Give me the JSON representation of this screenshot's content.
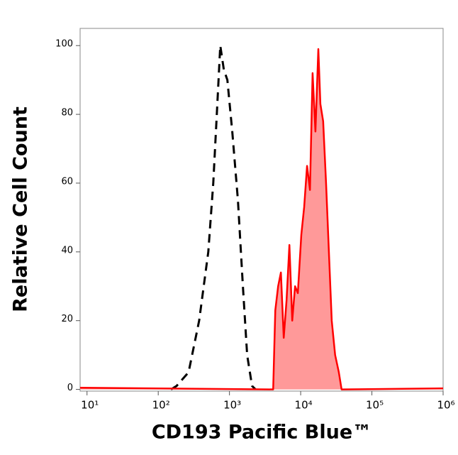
{
  "chart_data": {
    "type": "histogram-line",
    "x_label": "CD193 Pacific Blue™",
    "y_label": "Relative Cell Count",
    "xscale": "log",
    "xlim": [
      8,
      1000000
    ],
    "ylim": [
      -0.5,
      105
    ],
    "xticks": [
      {
        "value": 10,
        "label": "10¹"
      },
      {
        "value": 100,
        "label": "10²"
      },
      {
        "value": 1000,
        "label": "10³"
      },
      {
        "value": 10000,
        "label": "10⁴"
      },
      {
        "value": 100000,
        "label": "10⁵"
      },
      {
        "value": 1000000,
        "label": "10⁶"
      }
    ],
    "yticks": [
      0,
      20,
      40,
      60,
      80,
      100
    ],
    "series": [
      {
        "color": "#000000",
        "dashed": true,
        "filled": false,
        "x": [
          151,
          181,
          267,
          375,
          505,
          592,
          664,
          743,
          834,
          934,
          1096,
          1315,
          1543,
          1770,
          2076,
          2325
        ],
        "values": [
          0,
          1,
          5,
          20,
          40,
          60,
          80,
          100,
          93,
          90,
          75,
          55,
          30,
          10,
          1,
          0
        ]
      },
      {
        "color": "#ff0000",
        "dashed": false,
        "filled": true,
        "fill_color": "#ff9999",
        "x": [
          8,
          4110,
          4400,
          4820,
          5280,
          5780,
          6340,
          6950,
          7610,
          8340,
          9130,
          10200,
          11200,
          12300,
          13500,
          14700,
          16100,
          17700,
          18900,
          20700,
          22700,
          24900,
          27300,
          30500,
          34300,
          37500,
          1000000
        ],
        "values": [
          0.5,
          0,
          23,
          30,
          34,
          15,
          26,
          42,
          20,
          30,
          28,
          45,
          53,
          65,
          58,
          92,
          75,
          99,
          83,
          78,
          60,
          40,
          20,
          10,
          5,
          0,
          0.3
        ]
      }
    ]
  }
}
